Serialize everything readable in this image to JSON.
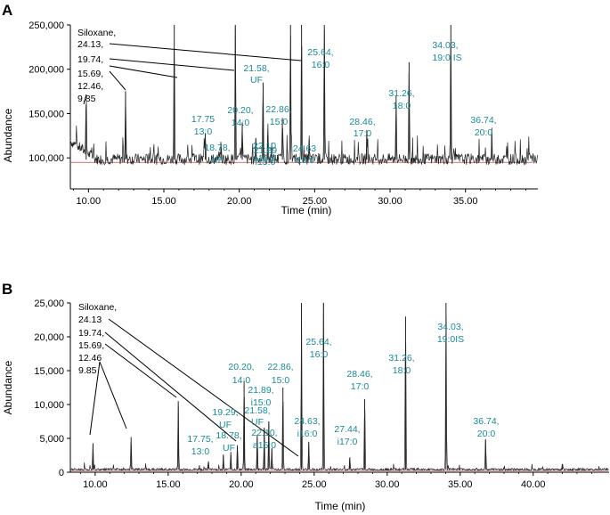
{
  "chart_data": [
    {
      "panel": "A",
      "type": "line",
      "xlabel": "Time (min)",
      "ylabel": "Abundance",
      "xlim": [
        8.8,
        39.8
      ],
      "ylim": [
        65000,
        250000
      ],
      "yticks": [
        100000,
        150000,
        200000,
        250000
      ],
      "ytick_labels": [
        "100,000",
        "150,000",
        "200,000",
        "250,000"
      ],
      "xticks": [
        10,
        15,
        20,
        25,
        30,
        35
      ],
      "xtick_labels": [
        "10.00",
        "15.00",
        "20.00",
        "25.00",
        "30.00",
        "35.00"
      ],
      "trace_color": "#222222",
      "baseline_color": "#b22222",
      "annotation_color": "#1a8a96",
      "baseline": 98000,
      "peaks": [
        {
          "x": 9.85,
          "y": 160000
        },
        {
          "x": 12.46,
          "y": 175000
        },
        {
          "x": 15.69,
          "y": 250000
        },
        {
          "x": 17.75,
          "y": 128000
        },
        {
          "x": 18.78,
          "y": 118000
        },
        {
          "x": 19.74,
          "y": 250000
        },
        {
          "x": 20.2,
          "y": 140000
        },
        {
          "x": 21.1,
          "y": 122000
        },
        {
          "x": 21.58,
          "y": 185000
        },
        {
          "x": 21.89,
          "y": 125000
        },
        {
          "x": 22.86,
          "y": 145000
        },
        {
          "x": 23.4,
          "y": 250000
        },
        {
          "x": 24.13,
          "y": 250000
        },
        {
          "x": 24.63,
          "y": 120000
        },
        {
          "x": 25.64,
          "y": 250000
        },
        {
          "x": 28.46,
          "y": 130000
        },
        {
          "x": 30.4,
          "y": 170000
        },
        {
          "x": 31.26,
          "y": 208000
        },
        {
          "x": 34.03,
          "y": 250000
        },
        {
          "x": 36.74,
          "y": 128000
        }
      ],
      "annotations": {
        "siloxane": [
          {
            "text": "Siloxane,",
            "color": "black"
          },
          {
            "text": "24.13,",
            "color": "black"
          },
          {
            "text": "19.74,",
            "color": "black"
          },
          {
            "text": "15.69,",
            "color": "black"
          },
          {
            "text": "12.46,",
            "color": "black"
          },
          {
            "text": "9.85",
            "color": "black"
          }
        ],
        "fames": [
          {
            "line1": "25.64,",
            "line2": "16:0"
          },
          {
            "line1": "21.58,",
            "line2": "UF"
          },
          {
            "line1": "34.03,",
            "line2": "19:0 IS"
          },
          {
            "line1": "31.26,",
            "line2": "18:0"
          },
          {
            "line1": "36.74,",
            "line2": "20:0"
          },
          {
            "line1": "17.75",
            "line2": "13:0"
          },
          {
            "line1": "20.20,",
            "line2": "14:0"
          },
          {
            "line1": "22.86,",
            "line2": "15:0"
          },
          {
            "line1": "28.46,",
            "line2": "17:0"
          },
          {
            "line1": "18.78,",
            "line2": "UF"
          },
          {
            "line1": "22.10",
            "line2": "a15:0"
          },
          {
            "line1": "21.89",
            "line2": "i15:0"
          },
          {
            "line1": "24.63",
            "line2": "i16:0"
          }
        ]
      }
    },
    {
      "panel": "B",
      "type": "line",
      "xlabel": "Time (min)",
      "ylabel": "Abundance",
      "xlim": [
        8.3,
        45.2
      ],
      "ylim": [
        0,
        25000
      ],
      "yticks": [
        0,
        5000,
        10000,
        15000,
        20000,
        25000
      ],
      "ytick_labels": [
        "0",
        "5,000",
        "10,000",
        "15,000",
        "20,000",
        "25,000"
      ],
      "xticks": [
        10,
        15,
        20,
        25,
        30,
        35,
        40
      ],
      "xtick_labels": [
        "10.00",
        "15.00",
        "20.00",
        "25.00",
        "30.00",
        "35.00",
        "40.00"
      ],
      "trace_color": "#222222",
      "baseline_color": "#b22222",
      "annotation_color": "#1a8a96",
      "baseline": 400,
      "peaks": [
        {
          "x": 9.85,
          "y": 4200
        },
        {
          "x": 12.46,
          "y": 5200
        },
        {
          "x": 15.69,
          "y": 10500
        },
        {
          "x": 17.75,
          "y": 1500
        },
        {
          "x": 18.78,
          "y": 2500
        },
        {
          "x": 19.29,
          "y": 3000
        },
        {
          "x": 19.74,
          "y": 4000
        },
        {
          "x": 20.2,
          "y": 13500
        },
        {
          "x": 21.1,
          "y": 5500
        },
        {
          "x": 21.58,
          "y": 6500
        },
        {
          "x": 21.89,
          "y": 7500
        },
        {
          "x": 22.1,
          "y": 3500
        },
        {
          "x": 22.86,
          "y": 12500
        },
        {
          "x": 24.13,
          "y": 25000
        },
        {
          "x": 24.63,
          "y": 4500
        },
        {
          "x": 25.64,
          "y": 25000
        },
        {
          "x": 27.44,
          "y": 2200
        },
        {
          "x": 28.46,
          "y": 10800
        },
        {
          "x": 31.26,
          "y": 23000
        },
        {
          "x": 34.03,
          "y": 25000
        },
        {
          "x": 36.74,
          "y": 4800
        },
        {
          "x": 42.0,
          "y": 1200
        }
      ],
      "annotations": {
        "siloxane": [
          {
            "text": "Siloxane,",
            "color": "black"
          },
          {
            "text": "24.13",
            "color": "black"
          },
          {
            "text": "19.74,",
            "color": "black"
          },
          {
            "text": "15.69,",
            "color": "black"
          },
          {
            "text": "12.46",
            "color": "black"
          },
          {
            "text": "9.85",
            "color": "black"
          }
        ],
        "fames": [
          {
            "line1": "25.64,",
            "line2": "16:0"
          },
          {
            "line1": "34.03,",
            "line2": "19:0IS"
          },
          {
            "line1": "31.26,",
            "line2": "18:0"
          },
          {
            "line1": "20.20,",
            "line2": "14:0"
          },
          {
            "line1": "22.86,",
            "line2": "15:0"
          },
          {
            "line1": "28.46,",
            "line2": "17:0"
          },
          {
            "line1": "21.89,",
            "line2": "i15:0"
          },
          {
            "line1": "19.29,",
            "line2": "UF"
          },
          {
            "line1": "21.58,",
            "line2": "UF"
          },
          {
            "line1": "24.63,",
            "line2": "i16:0"
          },
          {
            "line1": "27.44,",
            "line2": "i17:0"
          },
          {
            "line1": "36.74,",
            "line2": "20:0"
          },
          {
            "line1": "17.75,",
            "line2": "13:0"
          },
          {
            "line1": "18.78,",
            "line2": "UF"
          },
          {
            "line1": "22.10,",
            "line2": "a15:0"
          }
        ]
      }
    }
  ]
}
